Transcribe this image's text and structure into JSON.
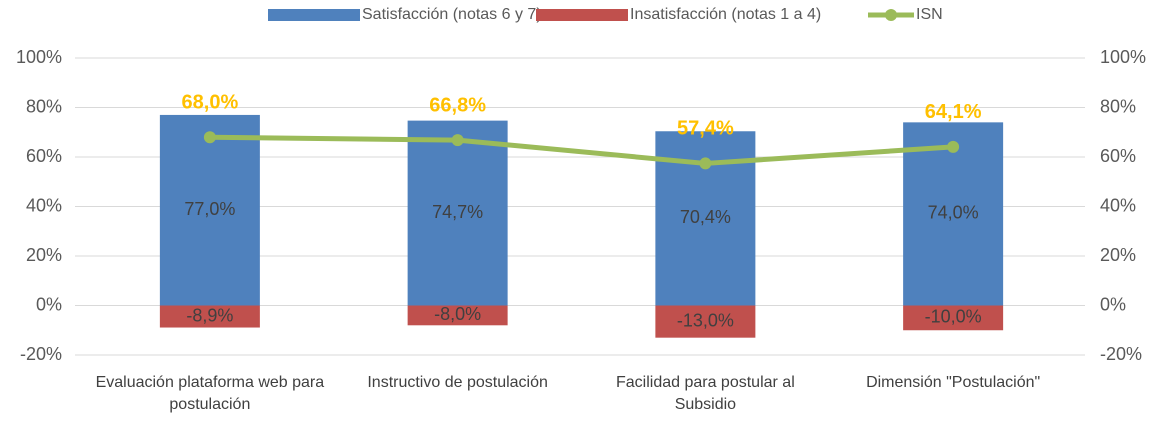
{
  "chart_data": {
    "type": "bar",
    "categories": [
      "Evaluación plataforma web para postulación",
      "Instructivo de postulación",
      "Facilidad para postular al Subsidio",
      "Dimensión \"Postulación\""
    ],
    "series": [
      {
        "name": "Satisfacción (notas 6 y 7)",
        "color": "#4f81bd",
        "values": [
          77.0,
          74.7,
          70.4,
          74.0
        ],
        "value_labels": [
          "77,0%",
          "74,7%",
          "70,4%",
          "74,0%"
        ]
      },
      {
        "name": "Insatisfacción (notas 1 a 4)",
        "color": "#c0504d",
        "values": [
          -8.9,
          -8.0,
          -13.0,
          -10.0
        ],
        "value_labels": [
          "-8,9%",
          "-8,0%",
          "-13,0%",
          "-10,0%"
        ]
      },
      {
        "name": "ISN",
        "type": "line",
        "axis": "y2",
        "color": "#9bbb59",
        "label_color": "#ffc000",
        "values": [
          68.0,
          66.8,
          57.4,
          64.1
        ],
        "value_labels": [
          "68,0%",
          "66,8%",
          "57,4%",
          "64,1%"
        ]
      }
    ],
    "ylim": [
      -20,
      100
    ],
    "yticks": [
      {
        "value": -20,
        "label": "-20%"
      },
      {
        "value": 0,
        "label": "0%"
      },
      {
        "value": 20,
        "label": "20%"
      },
      {
        "value": 40,
        "label": "40%"
      },
      {
        "value": 60,
        "label": "60%"
      },
      {
        "value": 80,
        "label": "80%"
      },
      {
        "value": 100,
        "label": "100%"
      }
    ],
    "y2lim": [
      -20,
      100
    ],
    "y2ticks": [
      {
        "value": -20,
        "label": "-20%"
      },
      {
        "value": 0,
        "label": "0%"
      },
      {
        "value": 20,
        "label": "20%"
      },
      {
        "value": 40,
        "label": "40%"
      },
      {
        "value": 60,
        "label": "60%"
      },
      {
        "value": 80,
        "label": "80%"
      },
      {
        "value": 100,
        "label": "100%"
      }
    ],
    "grid": true,
    "legend": "top"
  }
}
